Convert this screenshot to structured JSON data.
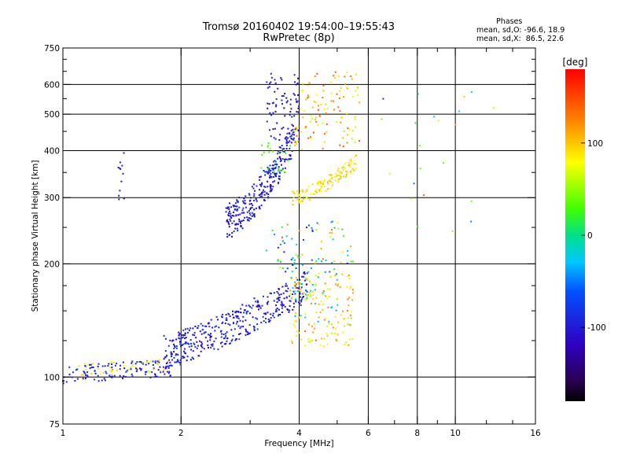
{
  "header": {
    "title": "Tromsø 20160402 19:54:00–19:55:43",
    "subtitle": "RwPretec (8p)"
  },
  "stats": {
    "heading": "Phases",
    "line_o": "mean, sd,O: -96.6, 18.9",
    "line_x": "mean, sd,X:  86.5, 22.6"
  },
  "colorbar": {
    "label": "[deg]",
    "min": -180,
    "max": 180,
    "ticks": [
      100,
      0,
      -100
    ],
    "tick_labels": [
      "100",
      "0",
      "-100"
    ]
  },
  "chart_data": {
    "type": "scatter",
    "xlabel": "Frequency [MHz]",
    "ylabel": "Stationary phase Virtual Height [km]",
    "xscale": "log",
    "yscale": "log",
    "xlim": [
      1,
      16
    ],
    "ylim": [
      75,
      750
    ],
    "xticks": [
      1,
      2,
      4,
      6,
      8,
      10,
      16
    ],
    "xtick_labels": [
      "1",
      "2",
      "4",
      "6",
      "8",
      "10",
      "16"
    ],
    "xgrid": [
      1,
      2,
      4,
      6,
      8,
      10,
      16
    ],
    "xminor": [
      3,
      5,
      7,
      9,
      12,
      14
    ],
    "yticks": [
      75,
      100,
      200,
      300,
      400,
      500,
      600,
      750
    ],
    "ytick_labels": [
      "75",
      "100",
      "200",
      "300",
      "400",
      "500",
      "600",
      "750"
    ],
    "ygrid": [
      100,
      200,
      300,
      400,
      500,
      600
    ],
    "grid": true,
    "clusters": [
      {
        "name": "O-F-region",
        "n": 300,
        "x": [
          2.6,
          3.9
        ],
        "y": [
          260,
          480
        ],
        "curve": "trace",
        "phase": [
          -125,
          -75
        ]
      },
      {
        "name": "O-F-high",
        "n": 80,
        "x": [
          3.3,
          4.0
        ],
        "y": [
          420,
          650
        ],
        "curve": "none",
        "phase": [
          -130,
          -80
        ]
      },
      {
        "name": "X-F-region",
        "n": 130,
        "x": [
          3.8,
          5.6
        ],
        "y": [
          300,
          390
        ],
        "curve": "trace",
        "phase": [
          70,
          110
        ]
      },
      {
        "name": "X-F-high",
        "n": 110,
        "x": [
          3.9,
          5.7
        ],
        "y": [
          400,
          650
        ],
        "curve": "none",
        "phase": [
          55,
          150
        ]
      },
      {
        "name": "X-F-green",
        "n": 25,
        "x": [
          3.2,
          3.8
        ],
        "y": [
          350,
          420
        ],
        "curve": "none",
        "phase": [
          10,
          50
        ]
      },
      {
        "name": "E-low-trace",
        "n": 120,
        "x": [
          1.0,
          1.9
        ],
        "y": [
          96,
          112
        ],
        "curve": "flat",
        "phase": [
          -110,
          -75
        ]
      },
      {
        "name": "E-low-green",
        "n": 40,
        "x": [
          1.05,
          1.9
        ],
        "y": [
          100,
          112
        ],
        "curve": "flat",
        "phase": [
          50,
          105
        ]
      },
      {
        "name": "O-spread",
        "n": 420,
        "x": [
          1.8,
          4.2
        ],
        "y": [
          105,
          190
        ],
        "curve": "rise",
        "phase": [
          -120,
          -70
        ]
      },
      {
        "name": "X-spread",
        "n": 150,
        "x": [
          3.8,
          5.5
        ],
        "y": [
          120,
          190
        ],
        "curve": "none",
        "phase": [
          55,
          130
        ]
      },
      {
        "name": "Mid-patches",
        "n": 70,
        "x": [
          3.3,
          5.5
        ],
        "y": [
          190,
          260
        ],
        "curve": "none",
        "phase": [
          -110,
          150
        ]
      },
      {
        "name": "Mid-blue",
        "n": 40,
        "x": [
          3.8,
          5.1
        ],
        "y": [
          140,
          210
        ],
        "curve": "none",
        "phase": [
          -40,
          -15
        ]
      },
      {
        "name": "Outliers-1.4",
        "n": 12,
        "x": [
          1.38,
          1.44
        ],
        "y": [
          290,
          400
        ],
        "curve": "none",
        "phase": [
          -110,
          -80
        ]
      },
      {
        "name": "Outliers-high",
        "n": 22,
        "x": [
          6.3,
          12.8
        ],
        "y": [
          230,
          650
        ],
        "curve": "none",
        "phase": [
          -100,
          140
        ]
      }
    ]
  }
}
